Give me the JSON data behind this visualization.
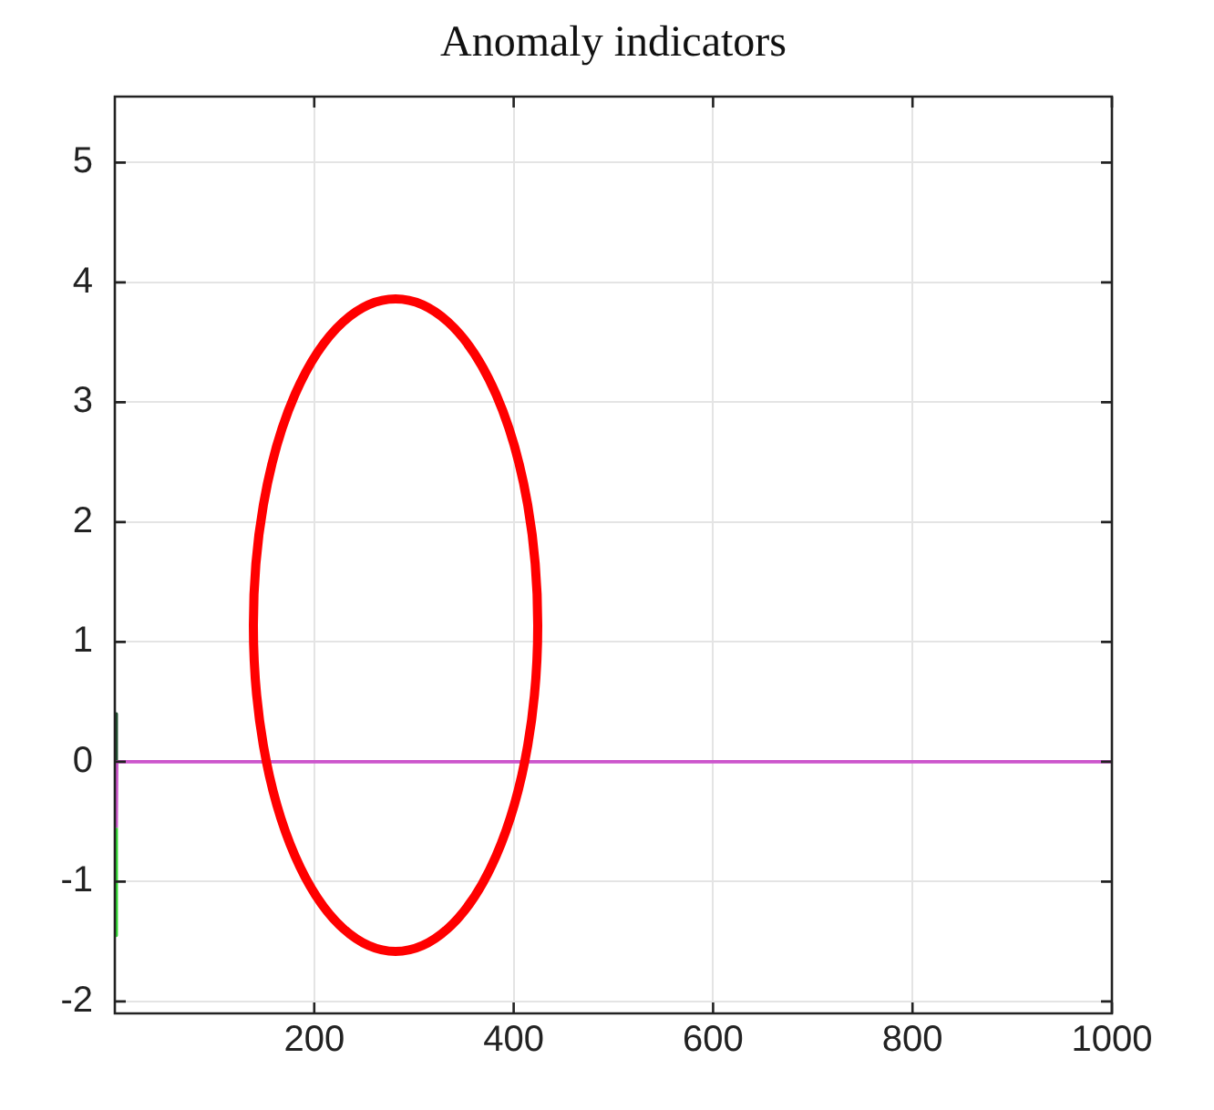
{
  "chart_data": {
    "type": "line",
    "title": "Anomaly indicators",
    "xlim": [
      0,
      1000
    ],
    "ylim": [
      -2.1,
      5.55
    ],
    "xticks": [
      200,
      400,
      600,
      800,
      1000
    ],
    "yticks": [
      -2,
      -1,
      0,
      1,
      2,
      3,
      4,
      5
    ],
    "grid": true,
    "legend": false,
    "marker": "none",
    "line_style": "solid",
    "series": [
      {
        "color": "#1f4f2f",
        "x": [
          1,
          1.5
        ],
        "values": [
          0.4,
          0
        ]
      },
      {
        "color": "#33dd33",
        "x": [
          1,
          1.5
        ],
        "values": [
          -1.45,
          -0.55
        ]
      },
      {
        "color": "#cc55cc",
        "x": [
          1.5,
          2,
          1000
        ],
        "values": [
          -0.55,
          0,
          0
        ]
      }
    ]
  }
}
